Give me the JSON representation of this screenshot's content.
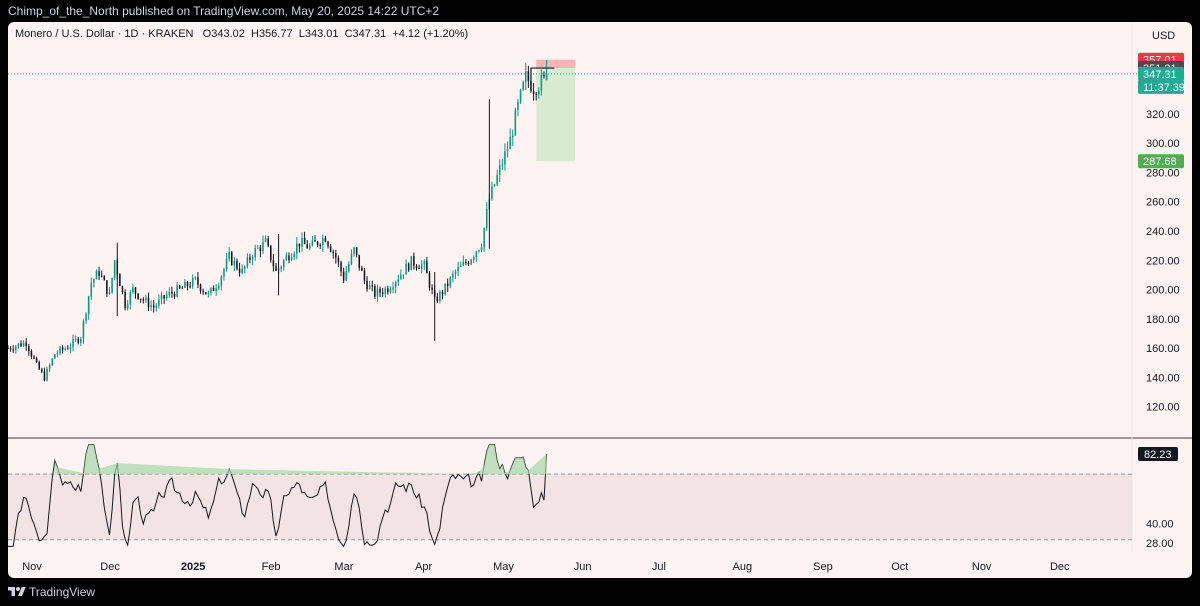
{
  "topbar": {
    "text": "Chimp_of_the_North published on TradingView.com, May 20, 2025 14:22 UTC+2"
  },
  "footer": {
    "brand": "TradingView"
  },
  "header": {
    "symbol": "Monero / U.S. Dollar · 1D · KRAKEN",
    "open": "O343.02",
    "high": "H356.77",
    "low": "L343.01",
    "close": "C347.31",
    "change": "+4.12 (+1.20%)"
  },
  "price_axis": {
    "currency": "USD",
    "ticks": [
      "320.00",
      "300.00",
      "280.00",
      "260.00",
      "240.00",
      "220.00",
      "200.00",
      "180.00",
      "160.00",
      "140.00",
      "120.00"
    ],
    "labels": [
      {
        "text": "357.01",
        "bg": "#f23645"
      },
      {
        "text": "351.31",
        "bg": "#4a4a4a"
      },
      {
        "text": "347.31",
        "bg": "#22ab94"
      },
      {
        "text": "11:37:39",
        "bg": "#22ab94"
      },
      {
        "text": "287.68",
        "bg": "#4caf50"
      }
    ]
  },
  "rsi_axis": {
    "ticks": [
      "40.00",
      "28.00"
    ],
    "current": "82.23"
  },
  "time_axis": [
    "Nov",
    "Dec",
    "2025",
    "Feb",
    "Mar",
    "Apr",
    "May",
    "Jun",
    "Jul",
    "Aug",
    "Sep",
    "Oct",
    "Nov",
    "Dec"
  ],
  "colors": {
    "up": "#089981",
    "down": "#131722",
    "stop_zone": "#f7b3b8",
    "target_zone": "#d7ebd3",
    "rsi_band": "#f2e4e4",
    "price_line": "#22ab94"
  },
  "chart_data": [
    {
      "type": "candlestick",
      "title": "Monero / U.S. Dollar · 1D · KRAKEN",
      "x_range": [
        "2024-10-25",
        "2025-12-31"
      ],
      "ylim": [
        100,
        365
      ],
      "y_ticks": [
        120,
        140,
        160,
        180,
        200,
        220,
        240,
        260,
        280,
        300,
        320
      ],
      "close_trend": [
        [
          "2024-10-25",
          160
        ],
        [
          "2024-11-01",
          164
        ],
        [
          "2024-11-05",
          148
        ],
        [
          "2024-11-08",
          140
        ],
        [
          "2024-11-12",
          156
        ],
        [
          "2024-11-18",
          162
        ],
        [
          "2024-11-22",
          168
        ],
        [
          "2024-11-26",
          205
        ],
        [
          "2024-11-29",
          212
        ],
        [
          "2024-12-03",
          196
        ],
        [
          "2024-12-05",
          220
        ],
        [
          "2024-12-09",
          190
        ],
        [
          "2024-12-12",
          200
        ],
        [
          "2024-12-16",
          193
        ],
        [
          "2024-12-20",
          188
        ],
        [
          "2024-12-25",
          196
        ],
        [
          "2024-12-30",
          200
        ],
        [
          "2025-01-05",
          206
        ],
        [
          "2025-01-10",
          196
        ],
        [
          "2025-01-14",
          206
        ],
        [
          "2025-01-18",
          222
        ],
        [
          "2025-01-23",
          212
        ],
        [
          "2025-01-27",
          225
        ],
        [
          "2025-02-01",
          232
        ],
        [
          "2025-02-05",
          212
        ],
        [
          "2025-02-09",
          222
        ],
        [
          "2025-02-14",
          232
        ],
        [
          "2025-02-18",
          229
        ],
        [
          "2025-02-24",
          236
        ],
        [
          "2025-02-28",
          222
        ],
        [
          "2025-03-03",
          208
        ],
        [
          "2025-03-07",
          227
        ],
        [
          "2025-03-11",
          206
        ],
        [
          "2025-03-15",
          197
        ],
        [
          "2025-03-20",
          201
        ],
        [
          "2025-03-25",
          211
        ],
        [
          "2025-03-29",
          219
        ],
        [
          "2025-04-03",
          216
        ],
        [
          "2025-04-07",
          192
        ],
        [
          "2025-04-11",
          201
        ],
        [
          "2025-04-15",
          212
        ],
        [
          "2025-04-20",
          220
        ],
        [
          "2025-04-25",
          232
        ],
        [
          "2025-04-28",
          262
        ],
        [
          "2025-05-03",
          287
        ],
        [
          "2025-05-06",
          302
        ],
        [
          "2025-05-09",
          325
        ],
        [
          "2025-05-12",
          345
        ],
        [
          "2025-05-15",
          338
        ],
        [
          "2025-05-19",
          343
        ],
        [
          "2025-05-20",
          347.31
        ]
      ],
      "last_candle": {
        "date": "2025-05-20",
        "open": 343.02,
        "high": 356.77,
        "low": 343.01,
        "close": 347.31
      },
      "spikes": [
        {
          "date": "2024-12-06",
          "high": 232,
          "low": 182
        },
        {
          "date": "2025-02-06",
          "high": 238,
          "low": 196
        },
        {
          "date": "2025-04-07",
          "high": 212,
          "low": 165
        },
        {
          "date": "2025-04-28",
          "high": 330,
          "low": 228
        }
      ],
      "position": {
        "type": "short",
        "start": "2025-05-16",
        "end": "2025-05-31",
        "entry": 351.31,
        "stop": 357.01,
        "target": 287.68
      },
      "annotations": [
        {
          "text": "357.01"
        },
        {
          "text": "351.31"
        },
        {
          "text": "347.31"
        },
        {
          "text": "287.68"
        }
      ],
      "legend": "none",
      "grid": false
    },
    {
      "type": "line",
      "series": [
        {
          "name": "RSI",
          "current": 82.23
        }
      ],
      "ylim": [
        25,
        92
      ],
      "band": [
        30,
        70
      ],
      "y_ticks": [
        28,
        40
      ],
      "overbought_fill": true
    }
  ]
}
